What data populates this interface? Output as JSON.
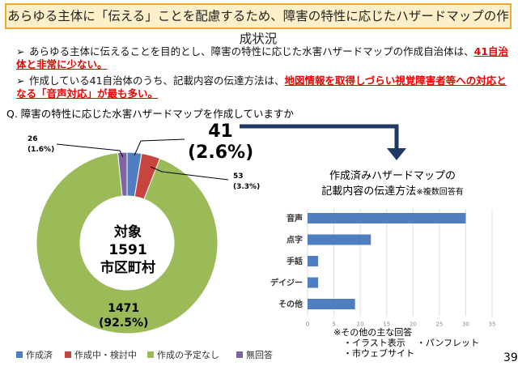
{
  "title": "あらゆる主体に「伝える」ことを配慮するため、障害の特性に応じたハザードマップの作成状況",
  "bullets": [
    {
      "text": "あらゆる主体に伝えることを目的とし、障害の特性に応じた水害ハザードマップの作成自治体は、",
      "emphasis": "41自治体と非常に少ない。"
    },
    {
      "text": "作成している41自治体のうち、記載内容の伝達方法は、",
      "emphasis": "地図情報を取得しづらい視覚障害者等への対応となる「音声対応」が最も多い。"
    }
  ],
  "question": "Q. 障害の特性に応じた水害ハザードマップを作成していますか",
  "page_number": "39",
  "chart_data": [
    {
      "type": "pie",
      "donut": true,
      "center_label": [
        "対象",
        "1591",
        "市区町村"
      ],
      "slices": [
        {
          "name": "作成済",
          "value": 41,
          "label": "41",
          "pct": "(2.6%)",
          "color": "#4f7fc0"
        },
        {
          "name": "作成中・検討中",
          "value": 53,
          "label": "53",
          "pct": "(3.3%)",
          "color": "#c8453f"
        },
        {
          "name": "作成の予定なし",
          "value": 1471,
          "label": "1471",
          "pct": "(92.5%)",
          "color": "#9bbb59"
        },
        {
          "name": "無回答",
          "value": 26,
          "label": "26",
          "pct": "(1.6%)",
          "color": "#7f64a2"
        }
      ],
      "legend": "bottom"
    },
    {
      "type": "bar",
      "orientation": "horizontal",
      "title": "作成済みハザードマップの",
      "title2": "記載内容の伝達方法",
      "title_note": "※複数回答有",
      "categories": [
        "音声",
        "点字",
        "手話",
        "デイジー",
        "その他"
      ],
      "values": [
        30,
        12,
        2,
        2,
        9
      ],
      "xlim": [
        0,
        35
      ],
      "xticks": [
        0,
        5,
        10,
        15,
        20,
        25,
        30,
        35
      ],
      "grid": true,
      "color": "#4f7fc0",
      "notes": [
        "※その他の主な回答",
        "・イラスト表示",
        "・パンフレット",
        "・市ウェブサイト"
      ]
    }
  ]
}
